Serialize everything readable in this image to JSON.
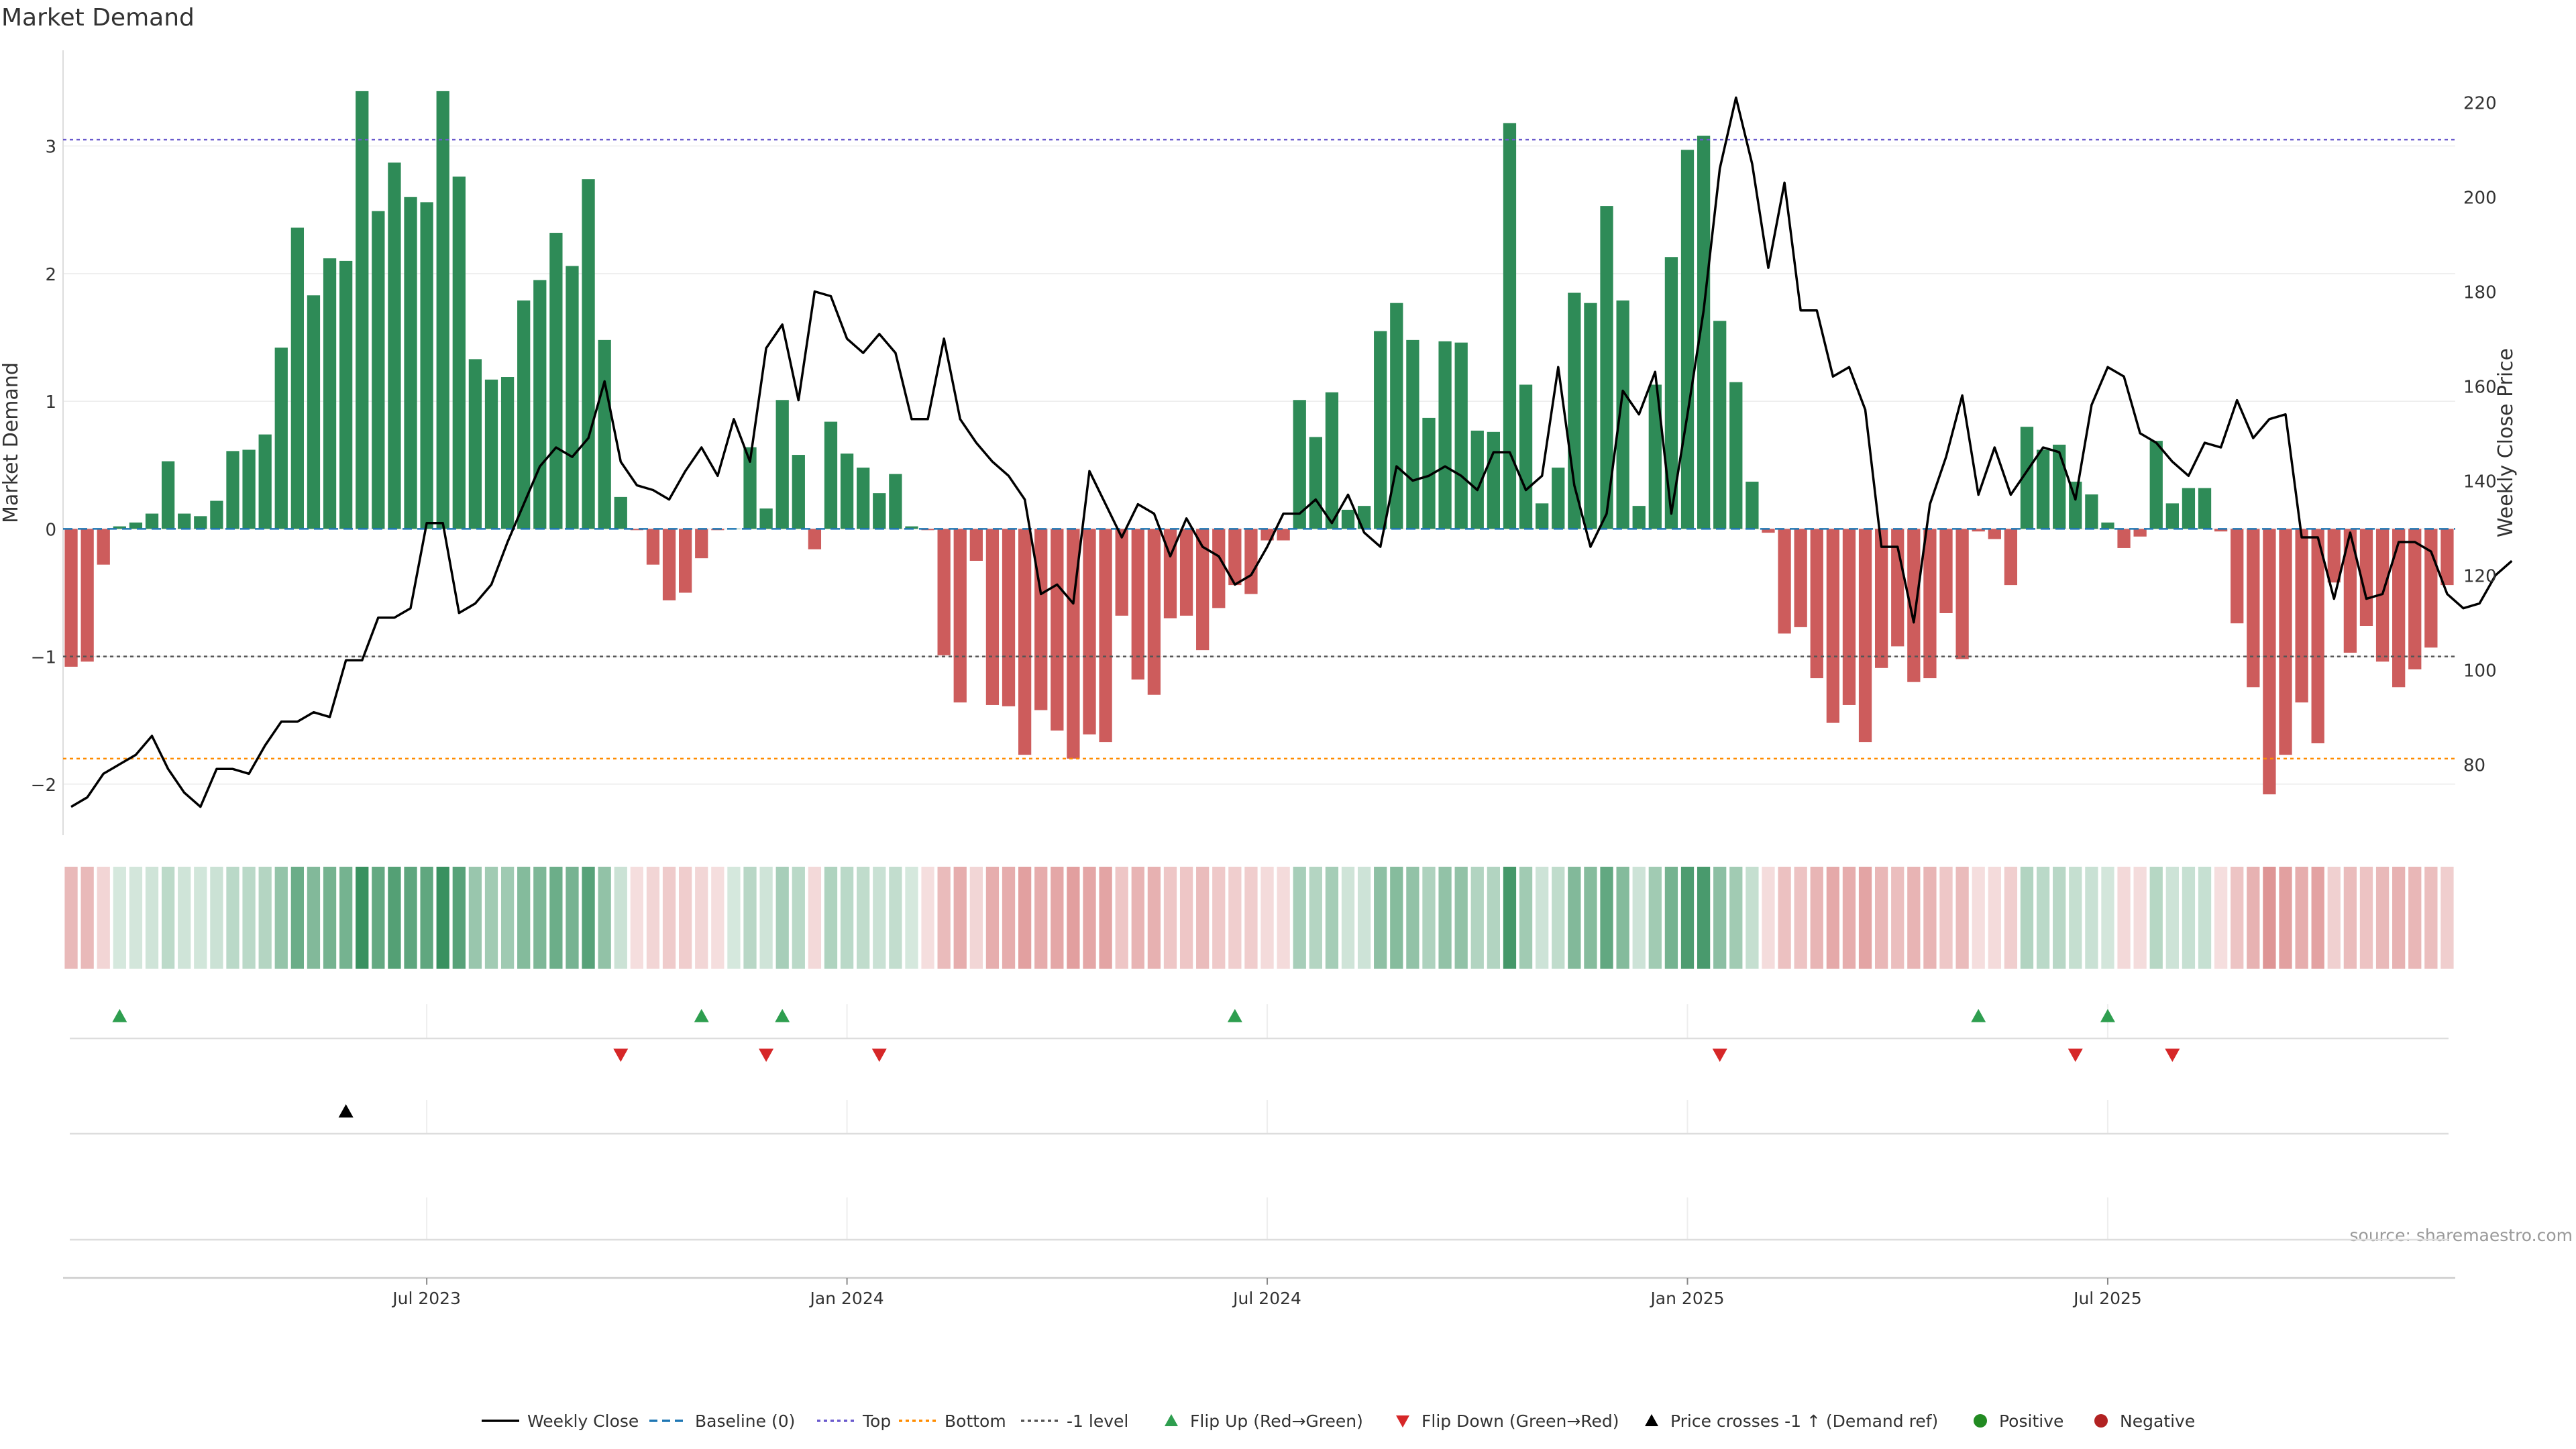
{
  "chart_data": {
    "type": "bar",
    "title": "Market Demand",
    "ylabel": "Market Demand",
    "y2label": "Weekly Close Price",
    "source": "source: sharemaestro.com",
    "ylim": [
      -2.4,
      3.75
    ],
    "y2lim": [
      65,
      231
    ],
    "yticks": [
      "−2",
      "−1",
      "0",
      "1",
      "2",
      "3"
    ],
    "yticks_values": [
      -2,
      -1,
      0,
      1,
      2,
      3
    ],
    "y2ticks": [
      "80",
      "100",
      "120",
      "140",
      "160",
      "180",
      "200",
      "220"
    ],
    "y2ticks_values": [
      80,
      100,
      120,
      140,
      160,
      180,
      200,
      220
    ],
    "xticks": [
      "Jul 2023",
      "Jan 2024",
      "Jul 2024",
      "Jan 2025",
      "Jul 2025"
    ],
    "xticks_week_index": [
      22,
      48,
      74,
      100,
      126
    ],
    "reference_lines": {
      "top": 3.05,
      "bottom": -1.8,
      "minus_one": -1,
      "baseline": 0
    },
    "demand": [
      -1.08,
      -1.04,
      -0.28,
      0.02,
      0.05,
      0.12,
      0.53,
      0.12,
      0.1,
      0.22,
      0.61,
      0.62,
      0.74,
      1.42,
      2.36,
      1.83,
      2.12,
      2.1,
      3.43,
      2.49,
      2.87,
      2.6,
      2.56,
      3.43,
      2.76,
      1.33,
      1.17,
      1.19,
      1.79,
      1.95,
      2.32,
      2.06,
      2.74,
      1.48,
      0.25,
      -0.01,
      -0.28,
      -0.56,
      -0.5,
      -0.23,
      -0.01,
      0.0,
      0.64,
      0.16,
      1.01,
      0.58,
      -0.16,
      0.84,
      0.59,
      0.48,
      0.28,
      0.43,
      0.02,
      -0.01,
      -0.99,
      -1.36,
      -0.25,
      -1.38,
      -1.39,
      -1.77,
      -1.42,
      -1.58,
      -1.8,
      -1.61,
      -1.67,
      -0.68,
      -1.18,
      -1.3,
      -0.7,
      -0.68,
      -0.95,
      -0.62,
      -0.44,
      -0.51,
      -0.09,
      -0.09,
      1.01,
      0.72,
      1.07,
      0.15,
      0.18,
      1.55,
      1.77,
      1.48,
      0.87,
      1.47,
      1.46,
      0.77,
      0.76,
      3.18,
      1.13,
      0.2,
      0.48,
      1.85,
      1.77,
      2.53,
      1.79,
      0.18,
      1.13,
      2.13,
      2.97,
      3.08,
      1.63,
      1.15,
      0.37,
      -0.03,
      -0.82,
      -0.77,
      -1.17,
      -1.52,
      -1.38,
      -1.67,
      -1.09,
      -0.92,
      -1.2,
      -1.17,
      -0.66,
      -1.02,
      -0.02,
      -0.08,
      -0.44,
      0.8,
      0.62,
      0.66,
      0.37,
      0.27,
      0.05,
      -0.15,
      -0.06,
      0.69,
      0.2,
      0.32,
      0.32,
      -0.02,
      -0.74,
      -1.24,
      -2.08,
      -1.77,
      -1.36,
      -1.68,
      -0.42,
      -0.97,
      -0.76,
      -1.04,
      -1.24,
      -1.1,
      -0.93,
      -0.44
    ],
    "price": [
      71,
      73,
      78,
      80,
      82,
      86,
      79,
      74,
      71,
      79,
      79,
      78,
      84,
      89,
      89,
      91,
      90,
      102,
      102,
      111,
      111,
      113,
      131,
      131,
      112,
      114,
      118,
      127,
      135,
      143,
      147,
      145,
      149,
      161,
      144,
      139,
      138,
      136,
      142,
      147,
      141,
      153,
      144,
      168,
      173,
      157,
      180,
      179,
      170,
      167,
      171,
      167,
      153,
      153,
      170,
      153,
      148,
      144,
      141,
      136,
      116,
      118,
      114,
      142,
      135,
      128,
      135,
      133,
      124,
      132,
      126,
      124,
      118,
      120,
      126,
      133,
      133,
      136,
      131,
      137,
      129,
      126,
      143,
      140,
      141,
      143,
      141,
      138,
      146,
      146,
      138,
      141,
      164,
      139,
      126,
      133,
      159,
      154,
      163,
      133,
      154,
      176,
      206,
      221,
      207,
      185,
      203,
      176,
      176,
      162,
      164,
      155,
      126,
      126,
      110,
      135,
      145,
      158,
      137,
      147,
      137,
      142,
      147,
      146,
      136,
      156,
      164,
      162,
      150,
      148,
      144,
      141,
      148,
      147,
      157,
      149,
      153,
      154,
      128,
      128,
      115,
      129,
      115,
      116,
      127,
      127,
      125,
      116,
      113,
      114,
      120,
      123
    ],
    "events": {
      "flip_up": [
        3,
        39,
        44,
        72,
        118,
        126
      ],
      "flip_down": [
        34,
        43,
        50,
        102,
        124,
        130
      ],
      "price_cross": [
        17
      ]
    },
    "legend": [
      "Weekly Close",
      "Baseline (0)",
      "Top",
      "Bottom",
      "-1 level",
      "Flip Up (Red→Green)",
      "Flip Down (Green→Red)",
      "Price crosses -1 ↑ (Demand ref)",
      "Positive",
      "Negative"
    ],
    "colors": {
      "positive": "#2e8b57",
      "negative": "#cd5c5c",
      "price": "#000000",
      "baseline": "#1f77b4",
      "top": "#6a5acd",
      "bottom": "#ff8c00",
      "minus_one": "#555555",
      "flip_up": "#2e9e4f",
      "flip_down": "#d62728",
      "legend_positive": "#228b22",
      "legend_negative": "#b22222"
    }
  }
}
